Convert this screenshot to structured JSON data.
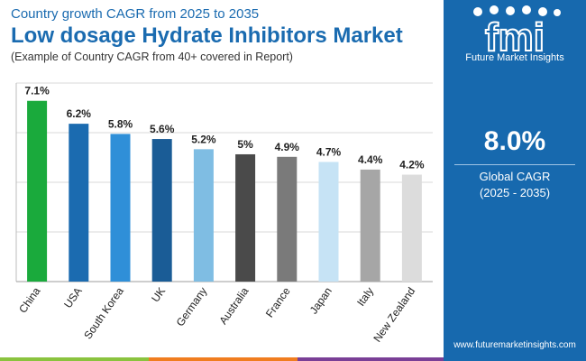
{
  "header": {
    "subtitle": "Country growth CAGR from 2025 to 2035",
    "title": "Low dosage Hydrate Inhibitors Market",
    "caption": "(Example of Country CAGR from 40+ covered in Report)"
  },
  "chart_data": {
    "type": "bar",
    "categories": [
      "China",
      "USA",
      "South Korea",
      "UK",
      "Germany",
      "Australia",
      "France",
      "Japan",
      "Italy",
      "New Zealand"
    ],
    "values": [
      7.1,
      6.2,
      5.8,
      5.6,
      5.2,
      5.0,
      4.9,
      4.7,
      4.4,
      4.2
    ],
    "data_labels": [
      "7.1%",
      "6.2%",
      "5.8%",
      "5.6%",
      "5.2%",
      "5%",
      "4.9%",
      "4.7%",
      "4.4%",
      "4.2%"
    ],
    "colors": [
      "#1aaa3c",
      "#1b6bb0",
      "#2f8fd8",
      "#1a5c96",
      "#7fbde3",
      "#4a4a4a",
      "#7a7a7a",
      "#c6e3f5",
      "#a6a6a6",
      "#dcdcdc"
    ],
    "ylim": [
      0,
      7.8
    ],
    "grid": true,
    "legend": "none"
  },
  "sidebar": {
    "logo_letters": "fmi",
    "brand": "Future Market Insights",
    "value": "8.0%",
    "value_label": "Global CAGR",
    "value_years": "(2025 - 2035)",
    "website": "www.futuremarketinsights.com",
    "background": "#1769ae"
  },
  "bottom_strip": {
    "colors": [
      "#8ac33e",
      "#f07d1f",
      "#7a3f96"
    ]
  }
}
